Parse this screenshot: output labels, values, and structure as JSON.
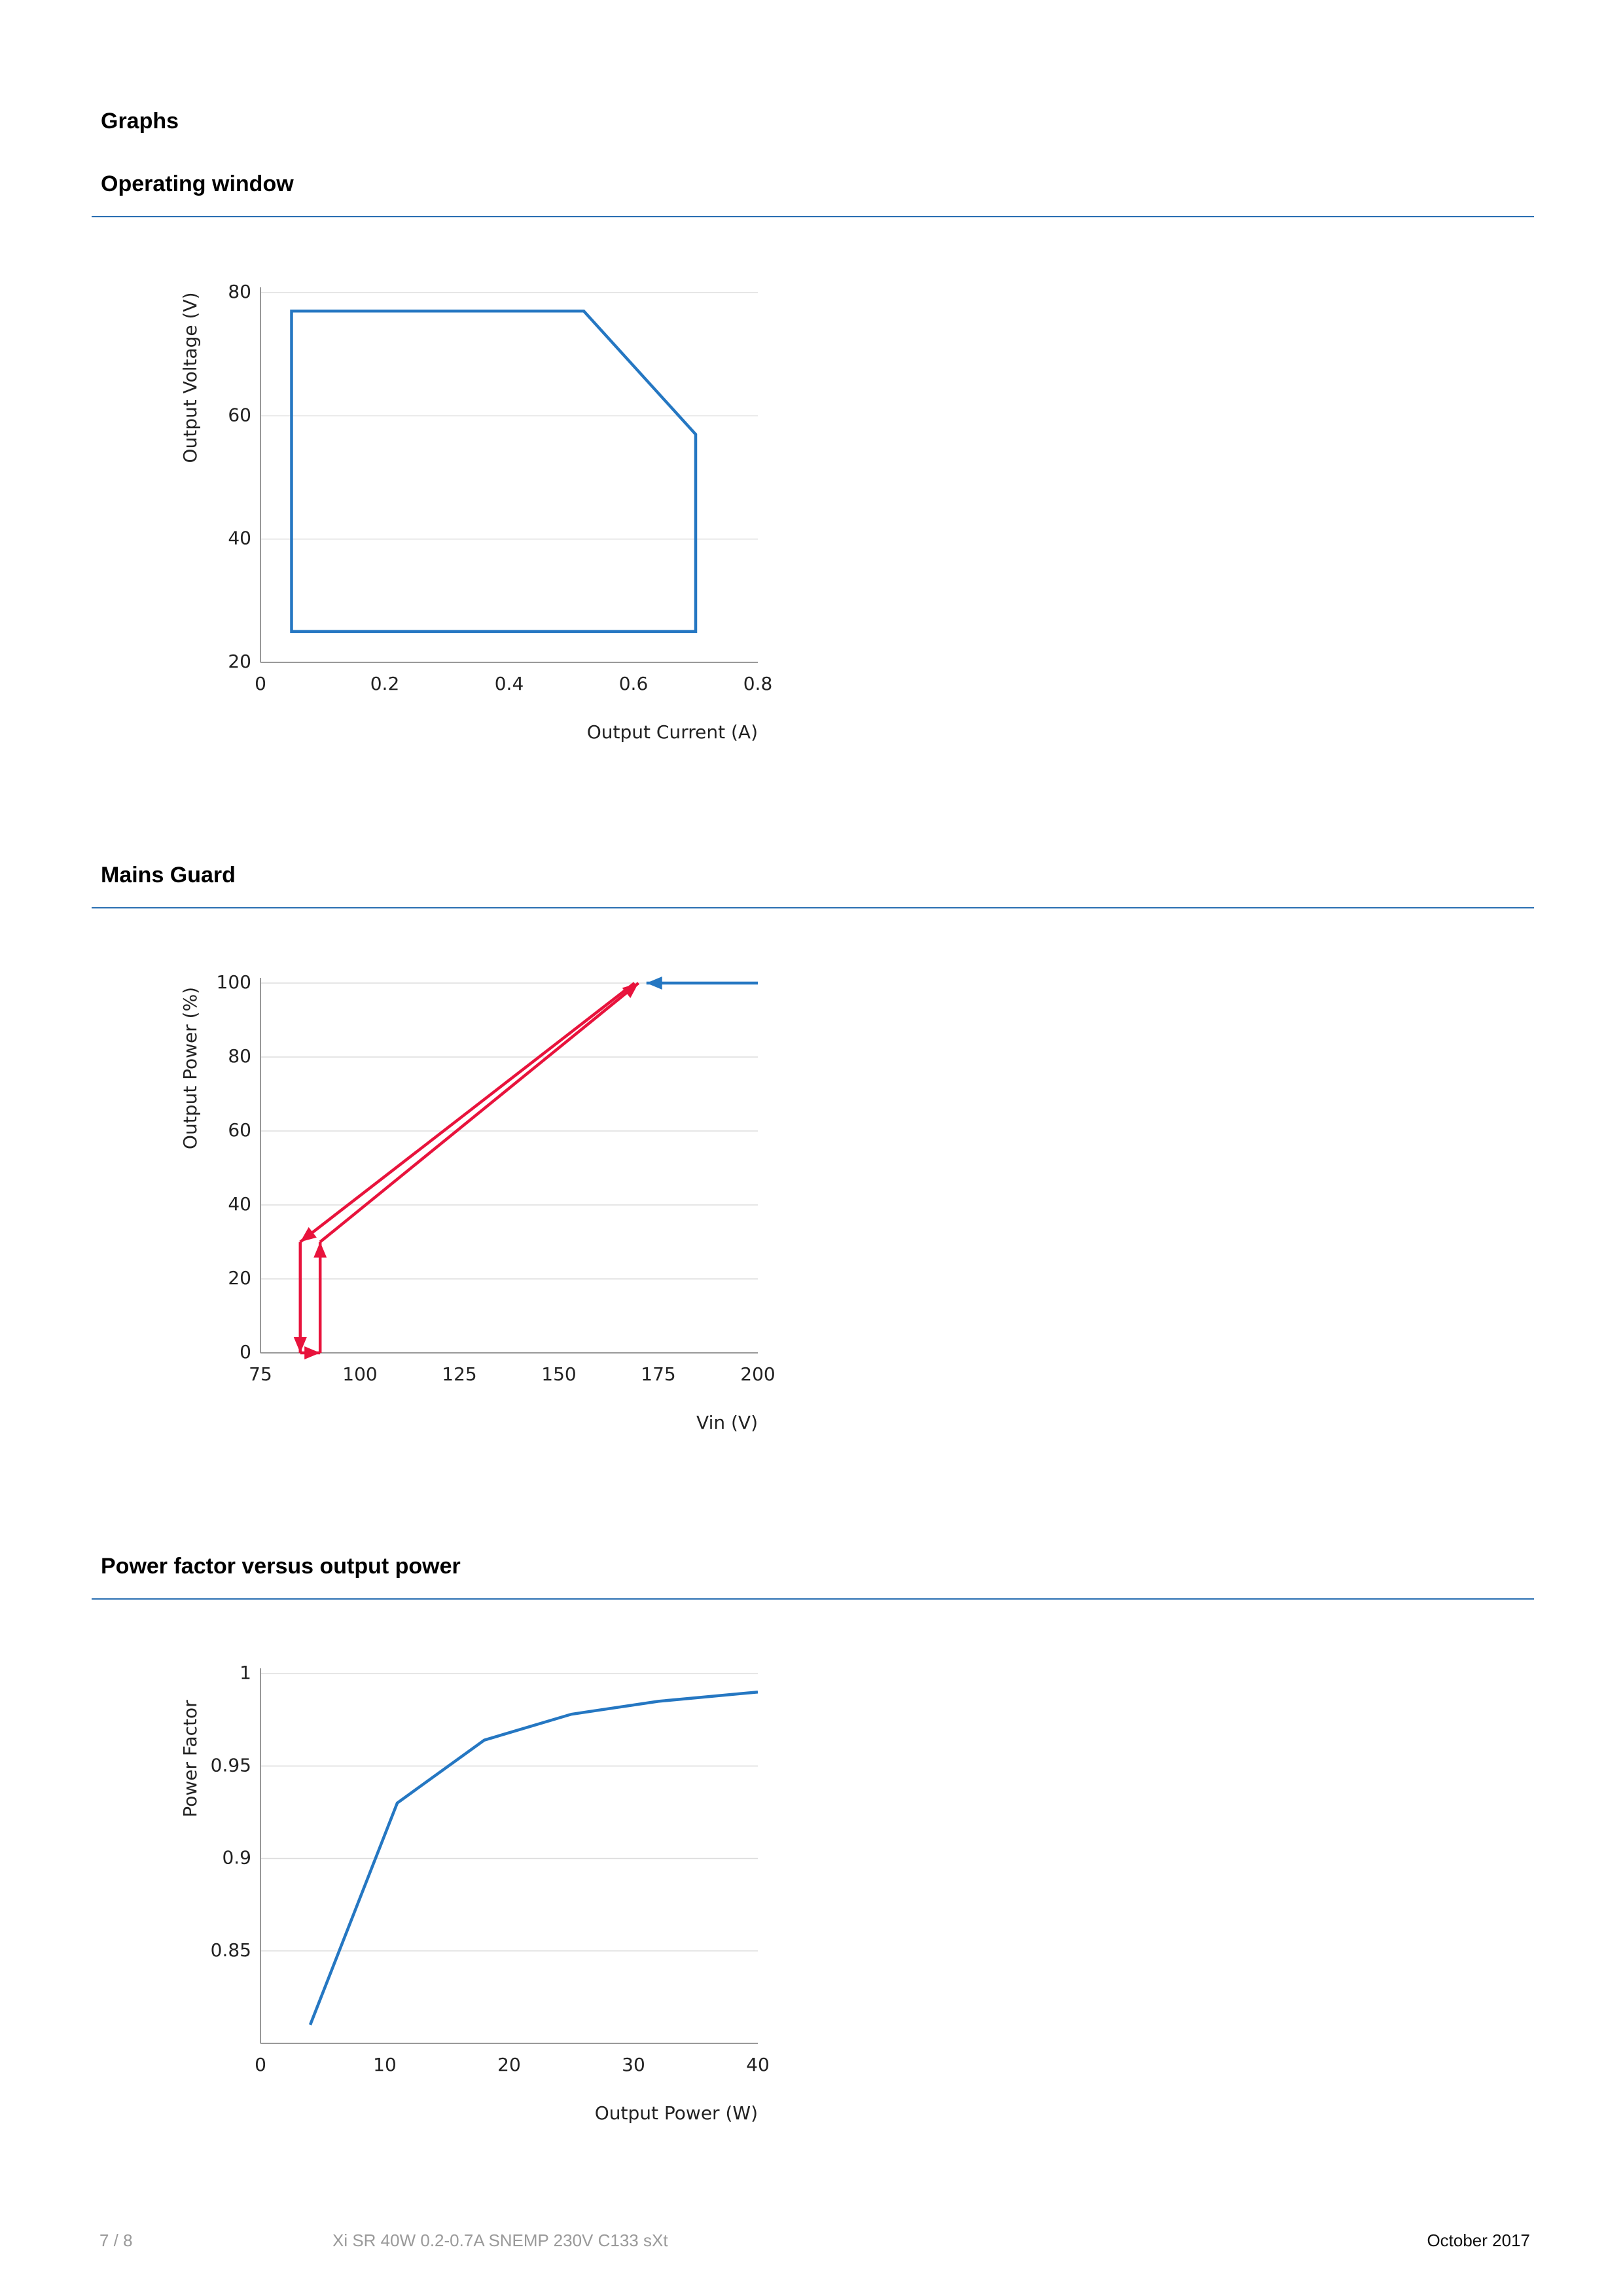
{
  "page": {
    "heading": "Graphs",
    "footer": {
      "page_number": "7 / 8",
      "product": "Xi SR 40W 0.2-0.7A SNEMP 230V C133 sXt",
      "date": "October 2017"
    }
  },
  "colors": {
    "rule": "#2a6fb2",
    "line_blue": "#2577c2",
    "line_red": "#e8133c",
    "grid": "#dddddd",
    "axis": "#999999"
  },
  "sections": [
    {
      "title": "Operating window"
    },
    {
      "title": "Mains Guard"
    },
    {
      "title": "Power factor versus output power"
    }
  ],
  "chart_data": [
    {
      "type": "line",
      "title": "Operating window",
      "xlabel": "Output Current (A)",
      "ylabel": "Output Voltage (V)",
      "xlim": [
        0,
        0.8
      ],
      "ylim": [
        20,
        80
      ],
      "xticks": [
        0,
        0.2,
        0.4,
        0.6,
        0.8
      ],
      "xtick_labels": [
        "0",
        "0.2",
        "0.4",
        "0.6",
        "0.8"
      ],
      "yticks": [
        20,
        40,
        60,
        80
      ],
      "ytick_labels": [
        "20",
        "40",
        "60",
        "80"
      ],
      "grid": true,
      "series": [
        {
          "color": "#2577c2",
          "closed": true,
          "x": [
            0.05,
            0.52,
            0.7,
            0.7,
            0.05
          ],
          "y": [
            77,
            77,
            57,
            25,
            25
          ]
        }
      ]
    },
    {
      "type": "line",
      "title": "Mains Guard",
      "xlabel": "Vin (V)",
      "ylabel": "Output Power (%)",
      "xlim": [
        75,
        200
      ],
      "ylim": [
        0,
        100
      ],
      "xticks": [
        75,
        100,
        125,
        150,
        175,
        200
      ],
      "xtick_labels": [
        "75",
        "100",
        "125",
        "150",
        "175",
        "200"
      ],
      "yticks": [
        0,
        20,
        40,
        60,
        80,
        100
      ],
      "ytick_labels": [
        "0",
        "20",
        "40",
        "60",
        "80",
        "100"
      ],
      "grid": true,
      "series": [
        {
          "color": "#2577c2",
          "x": [
            200,
            172
          ],
          "y": [
            100,
            100
          ],
          "arrow_end": true
        },
        {
          "color": "#e8133c",
          "x": [
            169,
            85
          ],
          "y": [
            100,
            30
          ],
          "arrow_end": true
        },
        {
          "color": "#e8133c",
          "x": [
            85,
            85
          ],
          "y": [
            30,
            0
          ],
          "arrow_end": true
        },
        {
          "color": "#e8133c",
          "x": [
            85,
            90
          ],
          "y": [
            0,
            0
          ],
          "arrow_end": true
        },
        {
          "color": "#e8133c",
          "x": [
            90,
            90
          ],
          "y": [
            0,
            30
          ],
          "arrow_end": true
        },
        {
          "color": "#e8133c",
          "x": [
            90,
            170
          ],
          "y": [
            30,
            100
          ],
          "arrow_end": true
        }
      ]
    },
    {
      "type": "line",
      "title": "Power factor versus output power",
      "xlabel": "Output Power (W)",
      "ylabel": "Power Factor",
      "xlim": [
        0,
        40
      ],
      "ylim": [
        0.8,
        1
      ],
      "xticks": [
        0,
        10,
        20,
        30,
        40
      ],
      "xtick_labels": [
        "0",
        "10",
        "20",
        "30",
        "40"
      ],
      "yticks": [
        0.85,
        0.9,
        0.95,
        1
      ],
      "ytick_labels": [
        "0.85",
        "0.9",
        "0.95",
        "1"
      ],
      "grid": true,
      "series": [
        {
          "color": "#2577c2",
          "x": [
            4,
            11,
            18,
            25,
            32,
            40
          ],
          "y": [
            0.81,
            0.93,
            0.964,
            0.978,
            0.985,
            0.99
          ]
        }
      ]
    }
  ]
}
